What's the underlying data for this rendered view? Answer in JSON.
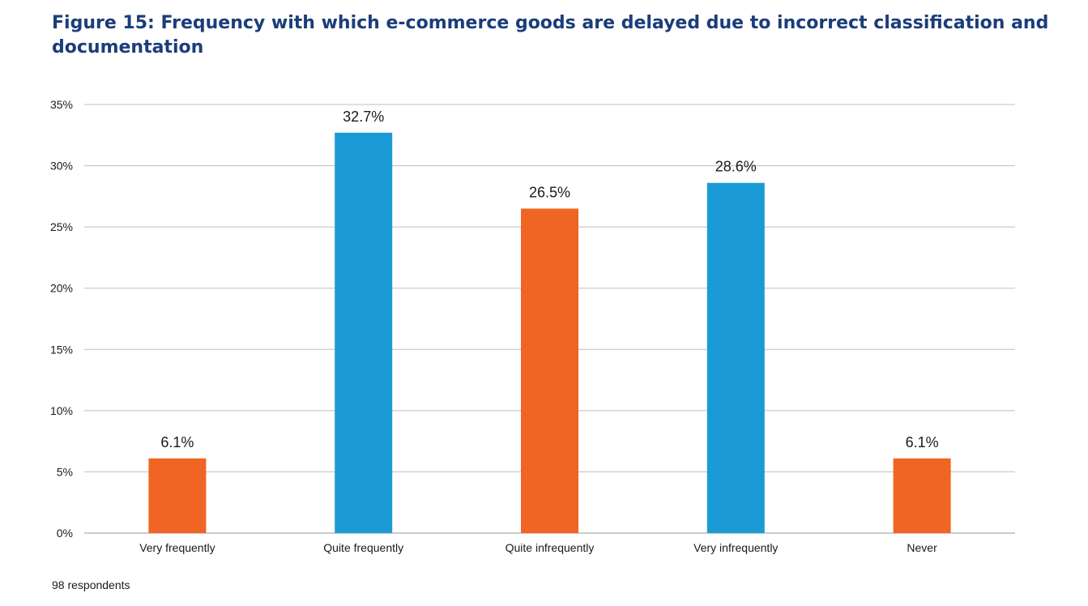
{
  "title": "Figure 15: Frequency with which e-commerce goods are delayed due to incorrect classification and documentation",
  "footnote": "98 respondents",
  "colors": {
    "orange": "#f06523",
    "blue": "#1b9bd5",
    "grid": "#bfbfbf"
  },
  "chart_data": {
    "type": "bar",
    "title": "Figure 15: Frequency with which e-commerce goods are delayed due to incorrect classification and documentation",
    "xlabel": "",
    "ylabel": "",
    "ylim": [
      0,
      35
    ],
    "yticks": [
      0,
      5,
      10,
      15,
      20,
      25,
      30,
      35
    ],
    "ytick_labels": [
      "0%",
      "5%",
      "10%",
      "15%",
      "20%",
      "25%",
      "30%",
      "35%"
    ],
    "categories": [
      "Very frequently",
      "Quite frequently",
      "Quite infrequently",
      "Very infrequently",
      "Never"
    ],
    "values": [
      6.1,
      32.7,
      26.5,
      28.6,
      6.1
    ],
    "data_labels": [
      "6.1%",
      "32.7%",
      "26.5%",
      "28.6%",
      "6.1%"
    ],
    "bar_colors": [
      "#f06523",
      "#1b9bd5",
      "#f06523",
      "#1b9bd5",
      "#f06523"
    ],
    "grid": true,
    "legend": "none"
  }
}
